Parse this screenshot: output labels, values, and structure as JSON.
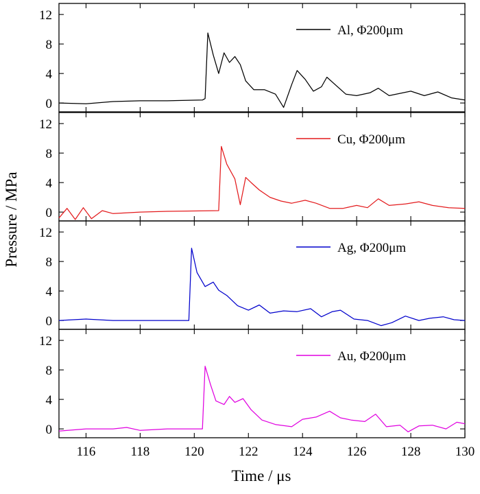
{
  "chart_data": {
    "type": "line",
    "xlabel": "Time / μs",
    "ylabel": "Pressure / MPa",
    "xlim": [
      115,
      130
    ],
    "ylim": [
      -1.2,
      13.5
    ],
    "x_ticks": [
      116,
      118,
      120,
      122,
      124,
      126,
      128,
      130
    ],
    "y_ticks": [
      0,
      4,
      8,
      12
    ],
    "grid": false,
    "legend_placement": "top-right",
    "panels": [
      {
        "id": "al",
        "legend": "Al, Φ200μm",
        "color": "#000000",
        "points": [
          [
            115,
            0
          ],
          [
            116,
            -0.1
          ],
          [
            117,
            0.2
          ],
          [
            118,
            0.3
          ],
          [
            119,
            0.3
          ],
          [
            120.3,
            0.4
          ],
          [
            120.4,
            0.6
          ],
          [
            120.5,
            9.5
          ],
          [
            120.7,
            6.5
          ],
          [
            120.9,
            4.0
          ],
          [
            121.1,
            6.8
          ],
          [
            121.3,
            5.5
          ],
          [
            121.5,
            6.3
          ],
          [
            121.7,
            5.2
          ],
          [
            121.9,
            3.0
          ],
          [
            122.2,
            1.8
          ],
          [
            122.6,
            1.8
          ],
          [
            123.0,
            1.2
          ],
          [
            123.3,
            -0.6
          ],
          [
            123.6,
            2.5
          ],
          [
            123.8,
            4.4
          ],
          [
            124.1,
            3.2
          ],
          [
            124.4,
            1.6
          ],
          [
            124.7,
            2.2
          ],
          [
            124.9,
            3.5
          ],
          [
            125.2,
            2.5
          ],
          [
            125.6,
            1.2
          ],
          [
            126.0,
            1.0
          ],
          [
            126.5,
            1.4
          ],
          [
            126.8,
            2.0
          ],
          [
            127.2,
            1.0
          ],
          [
            127.6,
            1.3
          ],
          [
            128.0,
            1.6
          ],
          [
            128.5,
            1.0
          ],
          [
            129.0,
            1.5
          ],
          [
            129.5,
            0.7
          ],
          [
            130,
            0.4
          ]
        ]
      },
      {
        "id": "cu",
        "legend": "Cu, Φ200μm",
        "color": "#e31a1c",
        "points": [
          [
            115,
            -0.8
          ],
          [
            115.3,
            0.5
          ],
          [
            115.6,
            -1.0
          ],
          [
            115.9,
            0.6
          ],
          [
            116.2,
            -0.9
          ],
          [
            116.6,
            0.2
          ],
          [
            117,
            -0.2
          ],
          [
            118,
            0
          ],
          [
            119,
            0.1
          ],
          [
            120.9,
            0.2
          ],
          [
            121.0,
            8.9
          ],
          [
            121.2,
            6.5
          ],
          [
            121.5,
            4.5
          ],
          [
            121.7,
            1.0
          ],
          [
            121.9,
            4.7
          ],
          [
            122.1,
            4.0
          ],
          [
            122.4,
            3.0
          ],
          [
            122.8,
            2.0
          ],
          [
            123.2,
            1.5
          ],
          [
            123.6,
            1.2
          ],
          [
            124.1,
            1.6
          ],
          [
            124.5,
            1.2
          ],
          [
            125.0,
            0.5
          ],
          [
            125.5,
            0.5
          ],
          [
            126.0,
            0.9
          ],
          [
            126.4,
            0.6
          ],
          [
            126.8,
            1.8
          ],
          [
            127.2,
            0.9
          ],
          [
            127.8,
            1.1
          ],
          [
            128.3,
            1.4
          ],
          [
            128.8,
            0.9
          ],
          [
            129.4,
            0.6
          ],
          [
            130,
            0.5
          ]
        ]
      },
      {
        "id": "ag",
        "legend": "Ag, Φ200μm",
        "color": "#0000cc",
        "points": [
          [
            115,
            0
          ],
          [
            116,
            0.2
          ],
          [
            117,
            0
          ],
          [
            118,
            0
          ],
          [
            119,
            0
          ],
          [
            119.8,
            0
          ],
          [
            119.9,
            9.8
          ],
          [
            120.1,
            6.5
          ],
          [
            120.4,
            4.6
          ],
          [
            120.7,
            5.2
          ],
          [
            120.9,
            4.1
          ],
          [
            121.2,
            3.4
          ],
          [
            121.6,
            2.0
          ],
          [
            122,
            1.4
          ],
          [
            122.4,
            2.1
          ],
          [
            122.8,
            1.0
          ],
          [
            123.3,
            1.3
          ],
          [
            123.8,
            1.2
          ],
          [
            124.3,
            1.6
          ],
          [
            124.7,
            0.5
          ],
          [
            125.1,
            1.2
          ],
          [
            125.4,
            1.4
          ],
          [
            125.9,
            0.2
          ],
          [
            126.4,
            0
          ],
          [
            126.9,
            -0.7
          ],
          [
            127.3,
            -0.3
          ],
          [
            127.8,
            0.6
          ],
          [
            128.3,
            0
          ],
          [
            128.7,
            0.3
          ],
          [
            129.2,
            0.5
          ],
          [
            129.6,
            0.1
          ],
          [
            130,
            0
          ]
        ]
      },
      {
        "id": "au",
        "legend": "Au, Φ200μm",
        "color": "#e000e0",
        "points": [
          [
            115,
            -0.3
          ],
          [
            116,
            0
          ],
          [
            117,
            0
          ],
          [
            117.5,
            0.2
          ],
          [
            118,
            -0.2
          ],
          [
            119,
            0
          ],
          [
            120.3,
            0
          ],
          [
            120.4,
            8.5
          ],
          [
            120.6,
            6.0
          ],
          [
            120.8,
            3.8
          ],
          [
            121.1,
            3.3
          ],
          [
            121.3,
            4.4
          ],
          [
            121.5,
            3.6
          ],
          [
            121.8,
            4.1
          ],
          [
            122.1,
            2.6
          ],
          [
            122.5,
            1.2
          ],
          [
            123.0,
            0.6
          ],
          [
            123.6,
            0.3
          ],
          [
            124.0,
            1.3
          ],
          [
            124.5,
            1.6
          ],
          [
            125.0,
            2.4
          ],
          [
            125.4,
            1.5
          ],
          [
            125.8,
            1.2
          ],
          [
            126.3,
            1.0
          ],
          [
            126.7,
            2.0
          ],
          [
            127.1,
            0.3
          ],
          [
            127.6,
            0.5
          ],
          [
            127.9,
            -0.4
          ],
          [
            128.3,
            0.4
          ],
          [
            128.8,
            0.5
          ],
          [
            129.3,
            0
          ],
          [
            129.7,
            0.9
          ],
          [
            130,
            0.7
          ]
        ]
      }
    ]
  }
}
